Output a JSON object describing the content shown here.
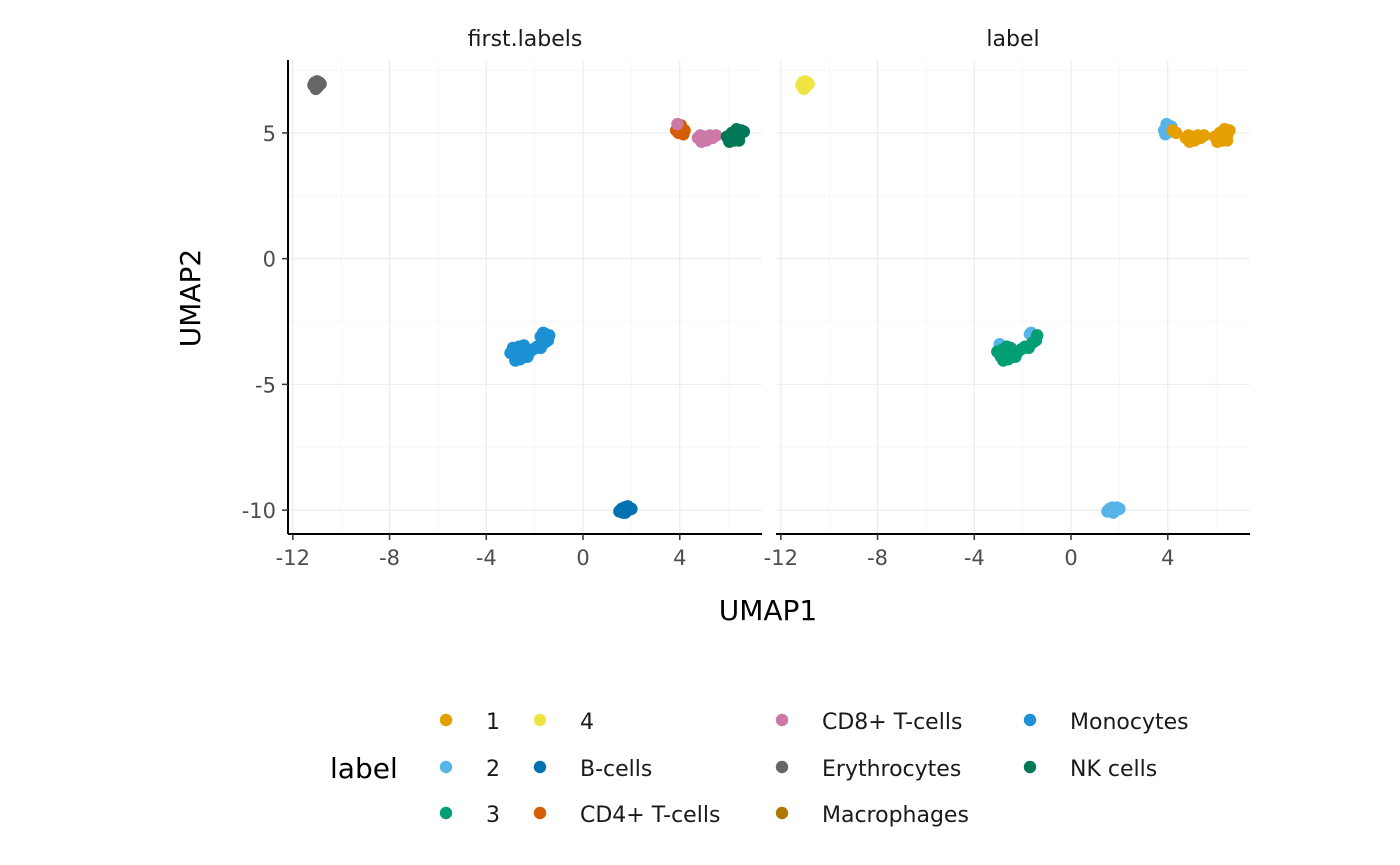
{
  "chart_data": {
    "type": "scatter",
    "facets": [
      "first.labels",
      "label"
    ],
    "xlabel": "UMAP1",
    "ylabel": "UMAP2",
    "xlim": [
      -12.2,
      7.4
    ],
    "ylim": [
      -10.95,
      7.9
    ],
    "xticks": [
      -12,
      -8,
      -4,
      0,
      4
    ],
    "xtick_labels": [
      "-12",
      "-8",
      "-4",
      "0",
      "4"
    ],
    "yticks": [
      5,
      0,
      -5,
      -10
    ],
    "ytick_labels": [
      "5",
      "0",
      "-5",
      "-10"
    ],
    "grid": true,
    "legend": {
      "title": "label",
      "position": "bottom",
      "columns": [
        [
          "1",
          "2",
          "3"
        ],
        [
          "4",
          "B-cells",
          "CD4+ T-cells"
        ],
        [
          "CD8+ T-cells",
          "Erythrocytes",
          "Macrophages"
        ],
        [
          "Monocytes",
          "NK cells"
        ]
      ],
      "entries": [
        {
          "name": "1",
          "color": "#E69F00"
        },
        {
          "name": "2",
          "color": "#56B4E9"
        },
        {
          "name": "3",
          "color": "#009E73"
        },
        {
          "name": "4",
          "color": "#F0E442"
        },
        {
          "name": "B-cells",
          "color": "#0072B2"
        },
        {
          "name": "CD4+ T-cells",
          "color": "#D55E00"
        },
        {
          "name": "CD8+ T-cells",
          "color": "#CC79A7"
        },
        {
          "name": "Erythrocytes",
          "color": "#666666"
        },
        {
          "name": "Macrophages",
          "color": "#AD7700"
        },
        {
          "name": "Monocytes",
          "color": "#1C91D4"
        },
        {
          "name": "NK cells",
          "color": "#007756"
        }
      ]
    },
    "panels": [
      {
        "title": "first.labels",
        "series": [
          {
            "name": "Erythrocytes",
            "points": [
              [
                -11.1,
                7.0
              ],
              [
                -10.9,
                7.0
              ],
              [
                -11.0,
                6.8
              ],
              [
                -10.95,
                6.85
              ],
              [
                -11.05,
                6.75
              ],
              [
                -10.85,
                6.95
              ],
              [
                -11.15,
                6.9
              ],
              [
                -11.0,
                7.05
              ]
            ]
          },
          {
            "name": "CD4+ T-cells",
            "points": [
              [
                3.85,
                5.1
              ],
              [
                4.0,
                5.2
              ],
              [
                4.1,
                5.05
              ],
              [
                3.95,
                5.0
              ],
              [
                4.2,
                5.1
              ],
              [
                3.9,
                5.2
              ],
              [
                4.05,
                5.3
              ],
              [
                4.15,
                4.95
              ]
            ]
          },
          {
            "name": "CD8+ T-cells",
            "points": [
              [
                3.9,
                5.35
              ],
              [
                4.75,
                4.8
              ],
              [
                4.85,
                4.9
              ],
              [
                4.95,
                4.75
              ],
              [
                5.05,
                4.85
              ],
              [
                5.1,
                4.7
              ],
              [
                5.25,
                4.9
              ],
              [
                4.9,
                4.65
              ],
              [
                5.5,
                4.9
              ],
              [
                5.35,
                4.8
              ]
            ]
          },
          {
            "name": "NK cells",
            "points": [
              [
                5.95,
                4.85
              ],
              [
                6.15,
                4.8
              ],
              [
                6.25,
                4.95
              ],
              [
                6.35,
                5.15
              ],
              [
                6.45,
                4.9
              ],
              [
                6.55,
                5.1
              ],
              [
                6.25,
                4.7
              ],
              [
                6.05,
                4.65
              ],
              [
                6.35,
                4.75
              ],
              [
                6.65,
                5.05
              ],
              [
                6.15,
                5.0
              ],
              [
                6.45,
                4.7
              ]
            ]
          },
          {
            "name": "Monocytes",
            "points": [
              [
                -2.8,
                -3.6
              ],
              [
                -2.65,
                -3.5
              ],
              [
                -2.75,
                -3.85
              ],
              [
                -2.55,
                -3.7
              ],
              [
                -2.6,
                -4.0
              ],
              [
                -2.8,
                -4.05
              ],
              [
                -3.0,
                -3.75
              ],
              [
                -2.4,
                -3.75
              ],
              [
                -2.7,
                -3.6
              ],
              [
                -2.5,
                -3.55
              ],
              [
                -2.3,
                -3.9
              ],
              [
                -2.2,
                -3.7
              ],
              [
                -2.05,
                -3.6
              ],
              [
                -1.9,
                -3.5
              ],
              [
                -1.75,
                -3.55
              ],
              [
                -1.6,
                -3.35
              ],
              [
                -1.75,
                -3.1
              ],
              [
                -1.55,
                -3.0
              ],
              [
                -1.45,
                -3.25
              ],
              [
                -1.65,
                -2.95
              ],
              [
                -1.4,
                -3.05
              ],
              [
                -2.45,
                -3.45
              ],
              [
                -2.9,
                -3.55
              ],
              [
                -2.55,
                -3.95
              ]
            ]
          },
          {
            "name": "B-cells",
            "points": [
              [
                1.55,
                -10.0
              ],
              [
                1.7,
                -9.9
              ],
              [
                1.8,
                -10.05
              ],
              [
                1.6,
                -9.95
              ],
              [
                1.9,
                -9.9
              ],
              [
                1.75,
                -10.1
              ],
              [
                2.0,
                -9.95
              ],
              [
                1.5,
                -10.05
              ],
              [
                1.85,
                -9.85
              ],
              [
                1.65,
                -10.1
              ]
            ]
          }
        ]
      },
      {
        "title": "label",
        "series": [
          {
            "name": "4",
            "points": [
              [
                -11.1,
                7.0
              ],
              [
                -10.9,
                7.0
              ],
              [
                -11.0,
                6.8
              ],
              [
                -10.95,
                6.85
              ],
              [
                -11.05,
                6.75
              ],
              [
                -10.85,
                6.95
              ],
              [
                -11.15,
                6.9
              ],
              [
                -11.0,
                7.05
              ]
            ]
          },
          {
            "name": "2",
            "points": [
              [
                3.85,
                5.1
              ],
              [
                3.95,
                5.35
              ],
              [
                4.05,
                5.2
              ],
              [
                4.1,
                5.05
              ],
              [
                3.9,
                4.95
              ],
              [
                4.15,
                5.25
              ],
              [
                -1.7,
                -3.0
              ],
              [
                -1.55,
                -3.05
              ],
              [
                -1.65,
                -2.95
              ],
              [
                -2.95,
                -3.4
              ],
              [
                1.55,
                -10.0
              ],
              [
                1.7,
                -9.9
              ],
              [
                1.8,
                -10.05
              ],
              [
                1.6,
                -9.95
              ],
              [
                1.9,
                -9.9
              ],
              [
                1.75,
                -10.1
              ],
              [
                2.0,
                -9.95
              ],
              [
                1.5,
                -10.05
              ]
            ]
          },
          {
            "name": "1",
            "points": [
              [
                4.2,
                5.1
              ],
              [
                4.35,
                5.0
              ],
              [
                4.75,
                4.8
              ],
              [
                4.85,
                4.9
              ],
              [
                4.95,
                4.75
              ],
              [
                5.05,
                4.85
              ],
              [
                5.1,
                4.7
              ],
              [
                5.25,
                4.9
              ],
              [
                4.9,
                4.65
              ],
              [
                5.5,
                4.9
              ],
              [
                5.35,
                4.8
              ],
              [
                5.95,
                4.85
              ],
              [
                6.15,
                4.8
              ],
              [
                6.25,
                4.95
              ],
              [
                6.35,
                5.15
              ],
              [
                6.45,
                4.9
              ],
              [
                6.55,
                5.1
              ],
              [
                6.25,
                4.7
              ],
              [
                6.05,
                4.65
              ],
              [
                6.35,
                4.75
              ],
              [
                6.15,
                5.0
              ],
              [
                6.45,
                4.7
              ]
            ]
          },
          {
            "name": "3",
            "points": [
              [
                -2.8,
                -3.6
              ],
              [
                -2.65,
                -3.5
              ],
              [
                -2.75,
                -3.85
              ],
              [
                -2.55,
                -3.7
              ],
              [
                -2.6,
                -4.0
              ],
              [
                -2.8,
                -4.05
              ],
              [
                -3.05,
                -3.7
              ],
              [
                -2.4,
                -3.75
              ],
              [
                -2.7,
                -3.6
              ],
              [
                -2.5,
                -3.55
              ],
              [
                -2.3,
                -3.9
              ],
              [
                -2.2,
                -3.7
              ],
              [
                -2.05,
                -3.6
              ],
              [
                -1.9,
                -3.5
              ],
              [
                -1.75,
                -3.55
              ],
              [
                -1.6,
                -3.35
              ],
              [
                -1.45,
                -3.25
              ],
              [
                -1.4,
                -3.05
              ],
              [
                -2.55,
                -3.95
              ],
              [
                -2.9,
                -3.9
              ]
            ]
          }
        ]
      }
    ]
  }
}
